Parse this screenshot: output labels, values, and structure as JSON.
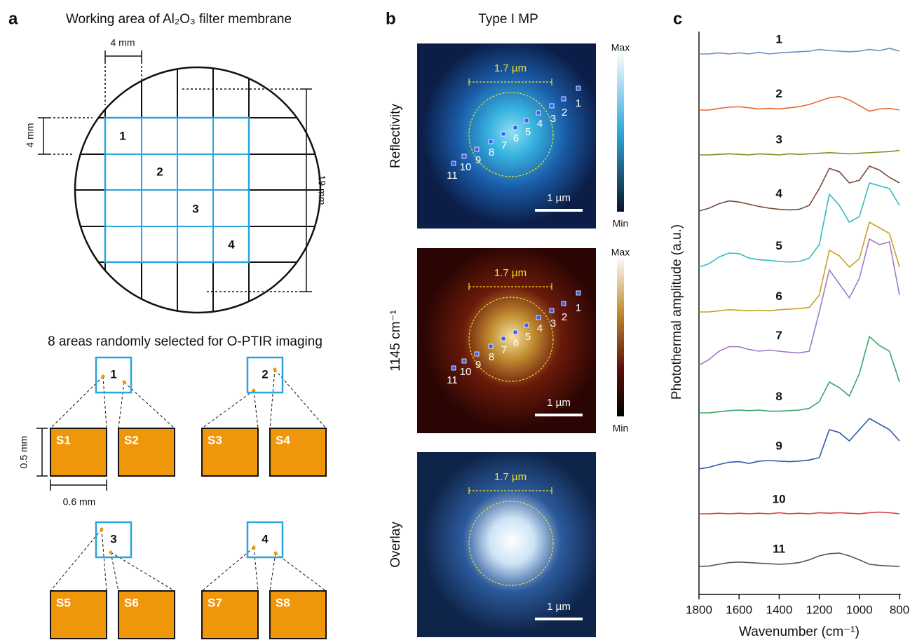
{
  "panels": {
    "a": {
      "label": "a",
      "title": "Working area of Al₂O₃ filter membrane",
      "dim_top": "4 mm",
      "dim_left": "4 mm",
      "dim_right": "19 mm",
      "cells": [
        "1",
        "2",
        "3",
        "4"
      ],
      "subtitle": "8 areas randomly selected for O-PTIR imaging",
      "areas": [
        "1",
        "2",
        "3",
        "4"
      ],
      "samples": [
        "S1",
        "S2",
        "S3",
        "S4",
        "S5",
        "S6",
        "S7",
        "S8"
      ],
      "dim_height": "0.5 mm",
      "dim_width": "0.6 mm"
    },
    "b": {
      "label": "b",
      "title": "Type I MP",
      "rows": [
        {
          "ylabel": "Reflectivity",
          "diameter": "1.7 µm",
          "scalebar": "1 µm",
          "cb_max": "Max",
          "cb_min": "Min"
        },
        {
          "ylabel": "1145 cm⁻¹",
          "diameter": "1.7 µm",
          "scalebar": "1 µm",
          "cb_max": "Max",
          "cb_min": "Min"
        },
        {
          "ylabel": "Overlay",
          "diameter": "1.7 µm",
          "scalebar": "1 µm"
        }
      ],
      "points": [
        "1",
        "2",
        "3",
        "4",
        "5",
        "6",
        "7",
        "8",
        "9",
        "10",
        "11"
      ]
    }
  },
  "chart_data": {
    "type": "line",
    "label": "c",
    "xlabel": "Wavenumber (cm⁻¹)",
    "ylabel": "Photothermal amplitude (a.u.)",
    "xlim": [
      1800,
      800
    ],
    "xticks": [
      1800,
      1600,
      1400,
      1200,
      1000,
      800
    ],
    "ylim": [
      0,
      100
    ],
    "x": [
      1800,
      1750,
      1700,
      1650,
      1600,
      1550,
      1500,
      1450,
      1400,
      1350,
      1300,
      1250,
      1200,
      1150,
      1100,
      1050,
      1000,
      950,
      900,
      850,
      800
    ],
    "series": [
      {
        "name": "1",
        "color": "#6a8fc4",
        "values": [
          96,
          96,
          96.2,
          96,
          96.2,
          96,
          96.3,
          96,
          96.2,
          96.3,
          96.4,
          96.5,
          96.8,
          96.6,
          96.5,
          96.4,
          96.5,
          96.8,
          96.6,
          97,
          96.5
        ]
      },
      {
        "name": "2",
        "color": "#e8692a",
        "values": [
          86,
          86,
          86.3,
          86.5,
          86.6,
          86.4,
          86.2,
          86.3,
          86.2,
          86.4,
          86.6,
          87,
          87.6,
          88.2,
          88.4,
          87.8,
          86.8,
          85.8,
          86.2,
          86.3,
          86
        ]
      },
      {
        "name": "3",
        "color": "#8a8a2a",
        "values": [
          78,
          78,
          78.1,
          78.2,
          78.1,
          78,
          78.2,
          78.1,
          78,
          78.2,
          78.1,
          78.2,
          78.3,
          78.4,
          78.3,
          78.2,
          78.3,
          78.4,
          78.5,
          78.6,
          78.8
        ]
      },
      {
        "name": "4",
        "color": "#7a4a3a",
        "values": [
          68,
          68.5,
          69.3,
          69.8,
          69.6,
          69.2,
          68.8,
          68.5,
          68.3,
          68.2,
          68.3,
          69,
          72,
          75.6,
          75,
          73,
          73.5,
          76,
          75.3,
          74,
          73
        ]
      },
      {
        "name": "5",
        "color": "#2ebcc4",
        "values": [
          58,
          58.6,
          59.8,
          60.5,
          60.4,
          59.6,
          59.3,
          59.2,
          59,
          58.9,
          59,
          59.6,
          62,
          71,
          69,
          66,
          67,
          73,
          72.5,
          72,
          69
        ]
      },
      {
        "name": "6",
        "color": "#c9a020",
        "values": [
          50,
          50,
          50.2,
          50.4,
          50.3,
          50.2,
          50.3,
          50.2,
          50.4,
          50.5,
          50.6,
          50.8,
          53,
          61,
          60,
          58,
          59.5,
          66,
          65,
          64,
          58
        ]
      },
      {
        "name": "7",
        "color": "#a07ac8",
        "values": [
          40.5,
          41.5,
          43,
          43.8,
          43.8,
          43.3,
          43,
          43.2,
          43,
          42.8,
          42.7,
          43,
          50,
          57.5,
          55,
          52.5,
          56,
          63,
          62,
          62.5,
          53
        ]
      },
      {
        "name": "8",
        "color": "#3aa66a",
        "values": [
          32,
          32,
          32.2,
          32.4,
          32.5,
          32.4,
          32.5,
          32.3,
          32.3,
          32.4,
          32.5,
          32.8,
          34,
          37.5,
          36.5,
          35,
          39,
          45.6,
          44,
          43,
          37.5
        ]
      },
      {
        "name": "9",
        "color": "#2a5aa8",
        "values": [
          22,
          22.3,
          22.8,
          23.2,
          23.3,
          23,
          23.4,
          23.5,
          23.4,
          23.3,
          23.4,
          23.6,
          24,
          29,
          28.5,
          27,
          29,
          31,
          30,
          29,
          27
        ]
      },
      {
        "name": "10",
        "color": "#d84040",
        "values": [
          14,
          14,
          14.1,
          14,
          14.1,
          14,
          14.1,
          14,
          14.2,
          14,
          14.1,
          14,
          14.2,
          14.1,
          14.2,
          14.1,
          14,
          14.2,
          14.3,
          14.2,
          14
        ]
      },
      {
        "name": "11",
        "color": "#555555",
        "values": [
          4.6,
          4.7,
          5,
          5.3,
          5.4,
          5.3,
          5.2,
          5.1,
          5,
          5.1,
          5.3,
          5.8,
          6.5,
          6.9,
          7,
          6.5,
          5.8,
          5,
          4.8,
          4.7,
          4.6
        ]
      }
    ]
  }
}
